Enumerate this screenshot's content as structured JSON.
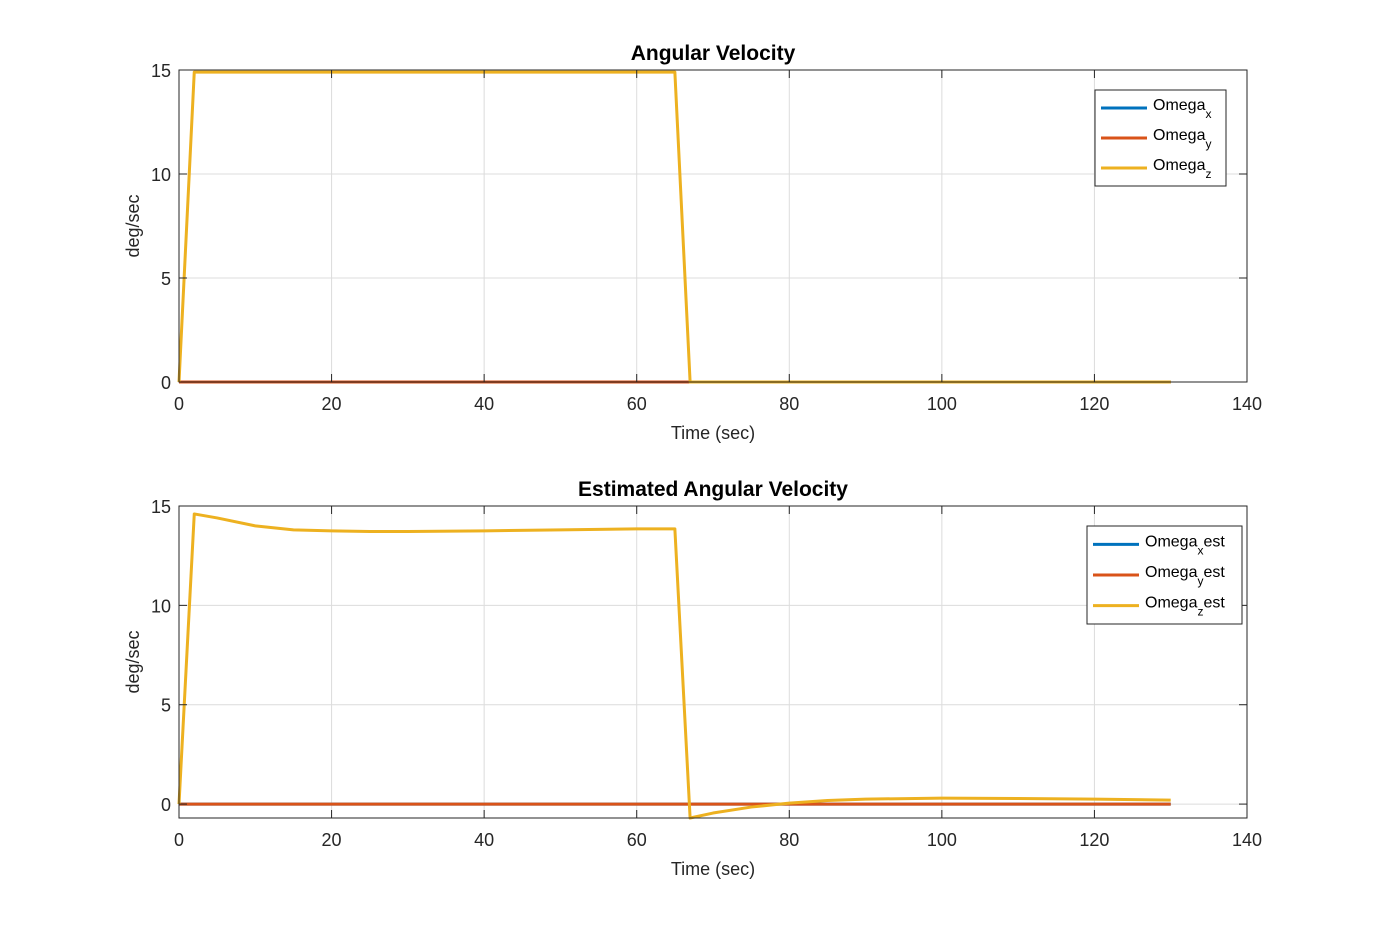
{
  "colors": {
    "background": "#ffffff",
    "axes_edge": "#262626",
    "grid": "#dcdcdc",
    "series_x": "#0072BD",
    "series_y": "#D95319",
    "series_z": "#EDB120"
  },
  "chart_data": [
    {
      "type": "line",
      "title": "Angular Velocity",
      "xlabel": "Time (sec)",
      "ylabel": "deg/sec",
      "xlim": [
        0,
        140
      ],
      "ylim": [
        0,
        15
      ],
      "xticks": [
        0,
        20,
        40,
        60,
        80,
        100,
        120,
        140
      ],
      "xtick_labels": [
        "0",
        "20",
        "40",
        "60",
        "80",
        "100",
        "120",
        "140"
      ],
      "yticks": [
        0,
        5,
        10,
        15
      ],
      "ytick_labels": [
        "0",
        "5",
        "10",
        "15"
      ],
      "grid": true,
      "legend_position": "top-right",
      "series": [
        {
          "name": "Omega",
          "subscript": "x",
          "suffix": "",
          "color": "#0072BD",
          "x": [
            0,
            65,
            67,
            130
          ],
          "y": [
            0,
            0,
            0,
            0
          ]
        },
        {
          "name": "Omega",
          "subscript": "y",
          "suffix": "",
          "color": "#D95319",
          "x": [
            0,
            65,
            67,
            130
          ],
          "y": [
            0,
            0,
            0,
            0
          ]
        },
        {
          "name": "Omega",
          "subscript": "z",
          "suffix": "",
          "color": "#EDB120",
          "x": [
            0,
            2,
            65,
            67,
            130
          ],
          "y": [
            0,
            14.9,
            14.9,
            0,
            0
          ]
        }
      ]
    },
    {
      "type": "line",
      "title": "Estimated Angular Velocity",
      "xlabel": "Time (sec)",
      "ylabel": "deg/sec",
      "xlim": [
        0,
        140
      ],
      "ylim": [
        -0.7,
        15
      ],
      "xticks": [
        0,
        20,
        40,
        60,
        80,
        100,
        120,
        140
      ],
      "xtick_labels": [
        "0",
        "20",
        "40",
        "60",
        "80",
        "100",
        "120",
        "140"
      ],
      "yticks": [
        0,
        5,
        10,
        15
      ],
      "ytick_labels": [
        "0",
        "5",
        "10",
        "15"
      ],
      "grid": true,
      "legend_position": "top-right",
      "series": [
        {
          "name": "Omega",
          "subscript": "x",
          "suffix": "est",
          "color": "#0072BD",
          "x": [
            0,
            130
          ],
          "y": [
            0,
            0
          ]
        },
        {
          "name": "Omega",
          "subscript": "y",
          "suffix": "est",
          "color": "#D95319",
          "x": [
            0,
            130
          ],
          "y": [
            0,
            0
          ]
        },
        {
          "name": "Omega",
          "subscript": "z",
          "suffix": "est",
          "color": "#EDB120",
          "x": [
            0,
            2,
            5,
            10,
            15,
            20,
            25,
            30,
            40,
            50,
            60,
            65,
            67,
            70,
            75,
            80,
            85,
            90,
            100,
            110,
            120,
            130
          ],
          "y": [
            0,
            14.6,
            14.4,
            14.0,
            13.8,
            13.75,
            13.72,
            13.72,
            13.75,
            13.8,
            13.85,
            13.85,
            -0.7,
            -0.45,
            -0.15,
            0.05,
            0.18,
            0.25,
            0.3,
            0.28,
            0.25,
            0.2
          ]
        }
      ]
    }
  ]
}
